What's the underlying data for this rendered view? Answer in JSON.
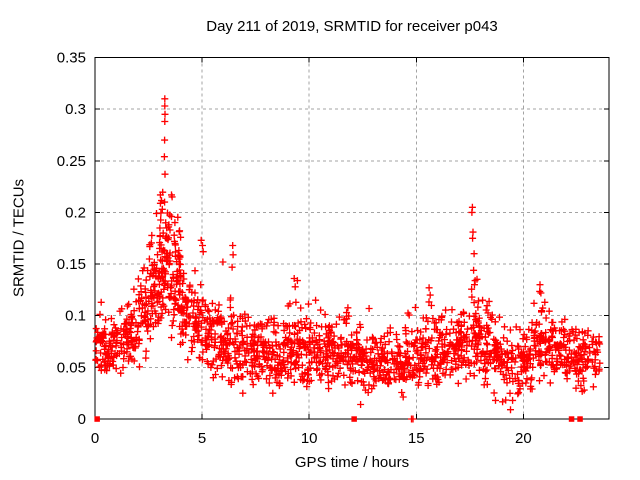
{
  "page": {
    "background": "#ffffff"
  },
  "chart_data": {
    "type": "scatter",
    "title": "Day 211 of 2019, SRMTID for receiver p043",
    "xlabel": "GPS time / hours",
    "ylabel": "SRMTID / TECUs",
    "xlim": [
      0,
      24
    ],
    "ylim": [
      0,
      0.35
    ],
    "xticks": [
      0,
      5,
      10,
      15,
      20
    ],
    "xtick_labels": [
      "0",
      "5",
      "10",
      "15",
      "20"
    ],
    "yticks": [
      0,
      0.05,
      0.1,
      0.15,
      0.2,
      0.25,
      0.3,
      0.35
    ],
    "ytick_labels": [
      "0",
      "0.05",
      "0.1",
      "0.15",
      "0.2",
      "0.25",
      "0.3",
      "0.35"
    ],
    "grid": {
      "show": true,
      "color": "#a3a3a3",
      "dash": "3 3"
    },
    "marker": {
      "shape": "plus",
      "color": "#ff0000",
      "size": 7,
      "stroke_width": 1.35
    },
    "legend": null,
    "seed": 20190211,
    "density_bins": {
      "fields": [
        "x_start",
        "x_end",
        "count",
        "center",
        "sigma",
        "y_min",
        "y_max"
      ],
      "rows": [
        [
          0.02,
          0.5,
          38,
          0.072,
          0.016,
          0.04,
          0.115
        ],
        [
          0.5,
          1.0,
          38,
          0.068,
          0.014,
          0.038,
          0.11
        ],
        [
          1.0,
          1.5,
          38,
          0.078,
          0.016,
          0.042,
          0.12
        ],
        [
          1.5,
          2.0,
          40,
          0.086,
          0.018,
          0.045,
          0.13
        ],
        [
          2.0,
          2.5,
          44,
          0.1,
          0.022,
          0.05,
          0.155
        ],
        [
          2.5,
          3.0,
          55,
          0.125,
          0.028,
          0.06,
          0.19
        ],
        [
          3.0,
          3.5,
          70,
          0.15,
          0.032,
          0.07,
          0.225
        ],
        [
          3.5,
          4.0,
          60,
          0.135,
          0.03,
          0.065,
          0.21
        ],
        [
          4.0,
          4.5,
          44,
          0.105,
          0.024,
          0.05,
          0.16
        ],
        [
          4.5,
          5.0,
          42,
          0.09,
          0.02,
          0.045,
          0.15
        ],
        [
          5.0,
          5.5,
          42,
          0.08,
          0.02,
          0.04,
          0.14
        ],
        [
          5.5,
          6.0,
          42,
          0.075,
          0.018,
          0.035,
          0.13
        ],
        [
          6.0,
          6.5,
          40,
          0.07,
          0.018,
          0.032,
          0.12
        ],
        [
          6.5,
          7.0,
          40,
          0.067,
          0.017,
          0.03,
          0.115
        ],
        [
          7.0,
          7.5,
          40,
          0.064,
          0.016,
          0.028,
          0.11
        ],
        [
          7.5,
          8.0,
          40,
          0.062,
          0.016,
          0.027,
          0.105
        ],
        [
          8.0,
          8.5,
          40,
          0.062,
          0.016,
          0.027,
          0.105
        ],
        [
          8.5,
          9.0,
          40,
          0.063,
          0.016,
          0.028,
          0.11
        ],
        [
          9.0,
          9.5,
          42,
          0.068,
          0.018,
          0.03,
          0.125
        ],
        [
          9.5,
          10.0,
          40,
          0.066,
          0.017,
          0.03,
          0.115
        ],
        [
          10.0,
          10.5,
          40,
          0.062,
          0.016,
          0.028,
          0.105
        ],
        [
          10.5,
          11.0,
          40,
          0.062,
          0.016,
          0.028,
          0.11
        ],
        [
          11.0,
          11.5,
          40,
          0.063,
          0.016,
          0.028,
          0.105
        ],
        [
          11.5,
          12.0,
          40,
          0.065,
          0.017,
          0.03,
          0.11
        ],
        [
          12.0,
          12.5,
          38,
          0.058,
          0.016,
          0.02,
          0.1
        ],
        [
          12.5,
          13.0,
          38,
          0.053,
          0.015,
          0.02,
          0.095
        ],
        [
          13.0,
          13.5,
          34,
          0.05,
          0.014,
          0.018,
          0.09
        ],
        [
          13.5,
          14.0,
          34,
          0.05,
          0.014,
          0.018,
          0.09
        ],
        [
          14.0,
          14.5,
          38,
          0.052,
          0.015,
          0.02,
          0.095
        ],
        [
          14.5,
          15.0,
          38,
          0.058,
          0.016,
          0.022,
          0.105
        ],
        [
          15.0,
          15.5,
          40,
          0.062,
          0.017,
          0.025,
          0.115
        ],
        [
          15.5,
          16.0,
          40,
          0.065,
          0.018,
          0.028,
          0.12
        ],
        [
          16.0,
          16.5,
          40,
          0.066,
          0.017,
          0.03,
          0.115
        ],
        [
          16.5,
          17.0,
          42,
          0.07,
          0.018,
          0.032,
          0.12
        ],
        [
          17.0,
          17.5,
          42,
          0.072,
          0.018,
          0.033,
          0.12
        ],
        [
          17.5,
          18.0,
          44,
          0.08,
          0.022,
          0.035,
          0.14
        ],
        [
          18.0,
          18.5,
          40,
          0.068,
          0.018,
          0.03,
          0.115
        ],
        [
          18.5,
          19.0,
          38,
          0.06,
          0.017,
          0.02,
          0.105
        ],
        [
          19.0,
          19.5,
          34,
          0.052,
          0.016,
          0.012,
          0.095
        ],
        [
          19.5,
          20.0,
          32,
          0.05,
          0.015,
          0.015,
          0.09
        ],
        [
          20.0,
          20.5,
          38,
          0.055,
          0.016,
          0.02,
          0.1
        ],
        [
          20.5,
          21.0,
          44,
          0.075,
          0.02,
          0.035,
          0.125
        ],
        [
          21.0,
          21.5,
          40,
          0.07,
          0.018,
          0.032,
          0.115
        ],
        [
          21.5,
          22.0,
          40,
          0.065,
          0.017,
          0.03,
          0.105
        ],
        [
          22.0,
          22.5,
          38,
          0.06,
          0.016,
          0.028,
          0.1
        ],
        [
          22.5,
          23.0,
          38,
          0.058,
          0.016,
          0.026,
          0.095
        ],
        [
          23.0,
          23.6,
          30,
          0.058,
          0.015,
          0.03,
          0.09
        ]
      ]
    },
    "feature_points": [
      [
        3.26,
        0.31
      ],
      [
        3.26,
        0.303
      ],
      [
        3.27,
        0.295
      ],
      [
        3.26,
        0.288
      ],
      [
        3.25,
        0.27
      ],
      [
        3.24,
        0.254
      ],
      [
        3.27,
        0.237
      ],
      [
        3.25,
        0.21
      ],
      [
        3.57,
        0.217
      ],
      [
        3.6,
        0.215
      ],
      [
        2.87,
        0.199
      ],
      [
        3.57,
        0.196
      ],
      [
        3.3,
        0.19
      ],
      [
        3.45,
        0.188
      ],
      [
        3.5,
        0.183
      ],
      [
        3.7,
        0.178
      ],
      [
        3.35,
        0.175
      ],
      [
        4.96,
        0.173
      ],
      [
        5.02,
        0.168
      ],
      [
        5.05,
        0.162
      ],
      [
        5.97,
        0.152
      ],
      [
        6.43,
        0.168
      ],
      [
        6.45,
        0.159
      ],
      [
        6.4,
        0.147
      ],
      [
        9.3,
        0.136
      ],
      [
        9.45,
        0.134
      ],
      [
        9.35,
        0.128
      ],
      [
        10.3,
        0.115
      ],
      [
        11.75,
        0.103
      ],
      [
        12.8,
        0.107
      ],
      [
        15.6,
        0.127
      ],
      [
        15.65,
        0.12
      ],
      [
        14.96,
        0.108
      ],
      [
        17.62,
        0.205
      ],
      [
        17.6,
        0.2
      ],
      [
        17.65,
        0.181
      ],
      [
        17.63,
        0.175
      ],
      [
        17.7,
        0.16
      ],
      [
        17.68,
        0.144
      ],
      [
        17.75,
        0.134
      ],
      [
        17.72,
        0.13
      ],
      [
        17.6,
        0.118
      ],
      [
        17.78,
        0.102
      ],
      [
        18.1,
        0.115
      ],
      [
        20.78,
        0.13
      ],
      [
        20.82,
        0.122
      ],
      [
        21.0,
        0.113
      ],
      [
        20.5,
        0.112
      ],
      [
        21.8,
        0.094
      ],
      [
        0.29,
        0.113
      ],
      [
        23.57,
        0.054
      ],
      [
        6.9,
        0.025
      ],
      [
        8.3,
        0.025
      ],
      [
        12.4,
        0.014
      ],
      [
        18.7,
        0.018
      ],
      [
        19.4,
        0.009
      ],
      [
        19.5,
        0.018
      ]
    ],
    "zero_square_points": [
      0.1,
      12.1,
      22.25,
      22.65
    ],
    "zero_tick_points": [
      14.78,
      14.85
    ]
  }
}
